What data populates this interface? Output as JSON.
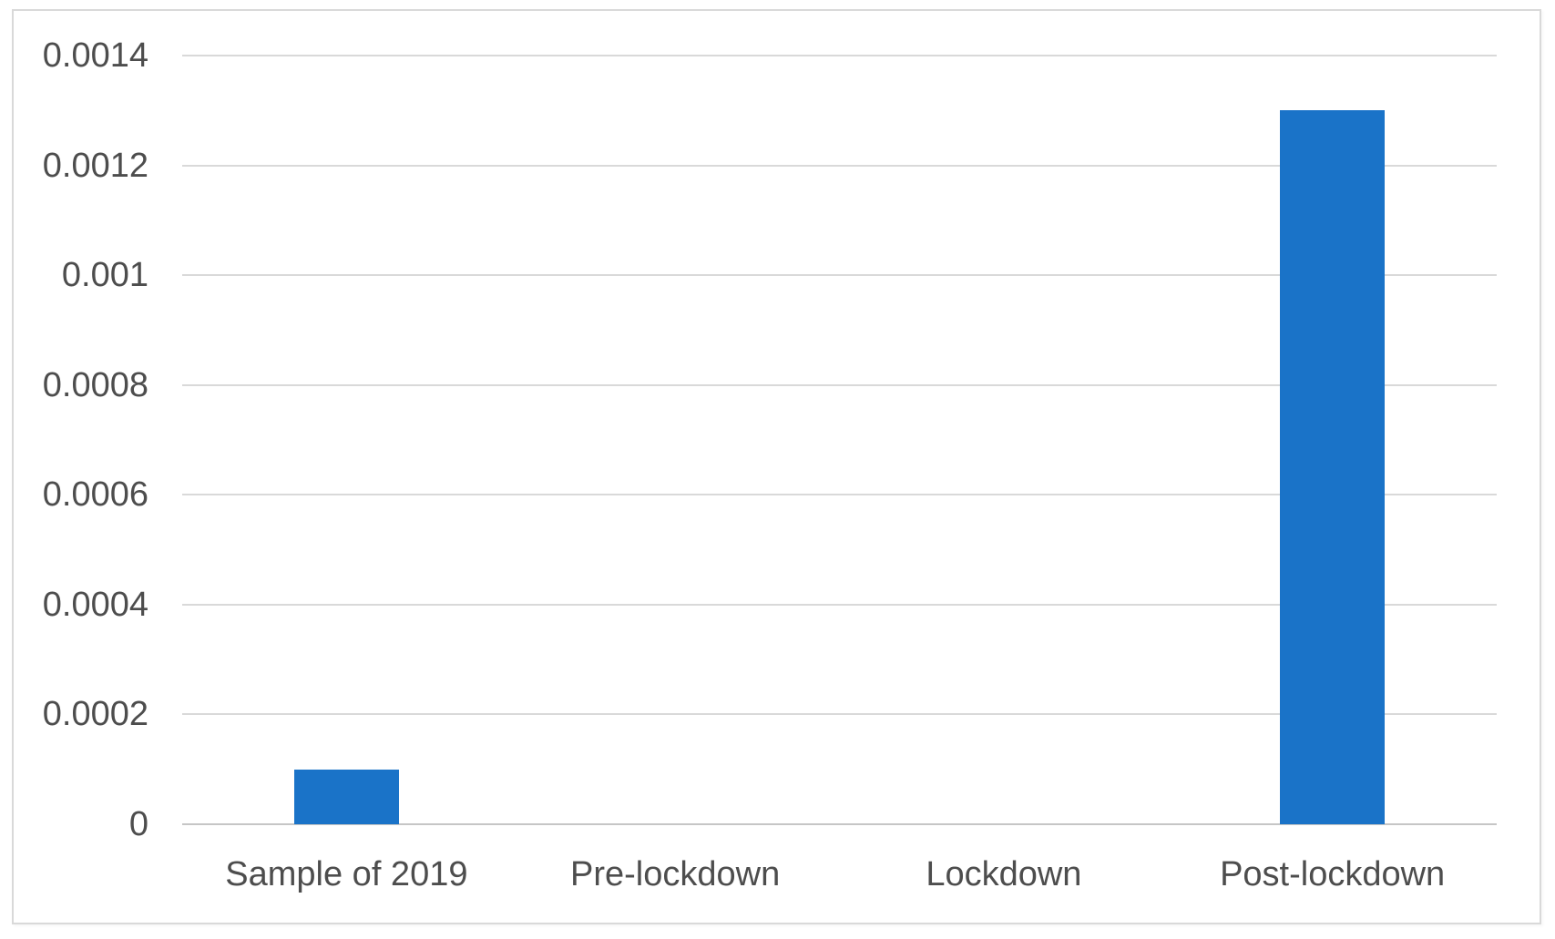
{
  "chart_data": {
    "type": "bar",
    "title": "",
    "xlabel": "",
    "ylabel": "",
    "categories": [
      "Sample of 2019",
      "Pre-lockdown",
      "Lockdown",
      "Post-lockdown"
    ],
    "values": [
      0.0001,
      0,
      0,
      0.0013
    ],
    "ylim": [
      0,
      0.0014
    ],
    "yticks": [
      0,
      0.0002,
      0.0004,
      0.0006,
      0.0008,
      0.001,
      0.0012,
      0.0014
    ],
    "ytick_labels": [
      "0",
      "0.0002",
      "0.0004",
      "0.0006",
      "0.0008",
      "0.001",
      "0.0012",
      "0.0014"
    ],
    "grid": true,
    "legend": false,
    "colors": {
      "bar": "#1a73c8",
      "gridline": "#d9d9d9",
      "axis_line": "#c6c6c6",
      "text": "#4d4d4d",
      "frame_border": "#d9d9d9",
      "background": "#ffffff"
    }
  }
}
